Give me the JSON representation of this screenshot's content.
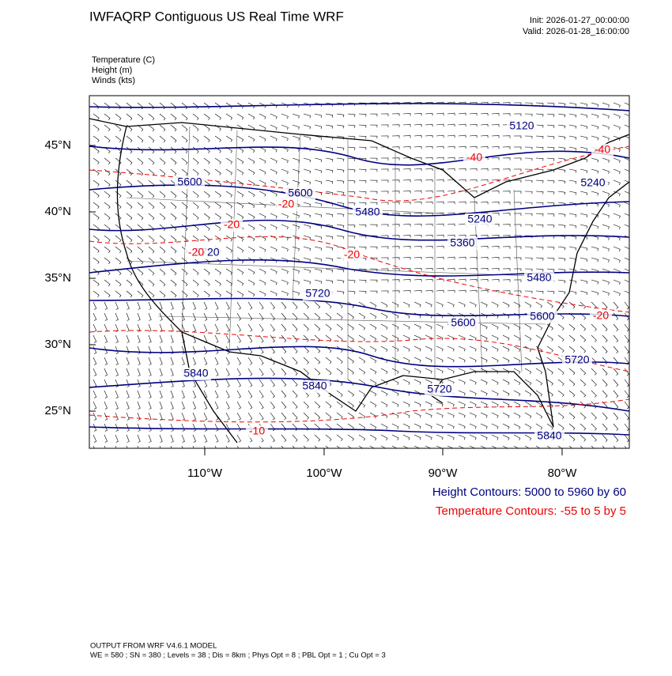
{
  "header": {
    "title": "IWFAQRP Contiguous US Real Time WRF",
    "init": "Init: 2026-01-27_00:00:00",
    "valid": "Valid: 2026-01-28_16:00:00"
  },
  "fields": [
    "Temperature   (C)",
    "Height   (m)",
    "Winds   (kts)"
  ],
  "lat_labels": [
    "45°N",
    "40°N",
    "35°N",
    "30°N",
    "25°N"
  ],
  "lon_labels": [
    "110°W",
    "100°W",
    "90°W",
    "80°W"
  ],
  "height_labels": [
    "5120",
    "5240",
    "5600",
    "5600",
    "5480",
    "5240",
    "5360",
    "5720",
    "5480",
    "5720",
    "5600",
    "5600",
    "5720",
    "5840",
    "5840",
    "5720",
    "5840"
  ],
  "temp_labels": [
    "-40",
    "-40",
    "-20",
    "-20",
    "-20",
    "-20",
    "-20",
    "-10"
  ],
  "contour_info": {
    "height": "Height Contours: 5000 to 5960 by 60",
    "temperature": "Temperature Contours: -55 to 5 by 5"
  },
  "footer": {
    "line1": "OUTPUT FROM WRF V4.6.1 MODEL",
    "line2": "WE = 580 ; SN = 380 ; Levels = 38 ; Dis = 8km ; Phys Opt = 8 ; PBL Opt = 1 ; Cu Opt = 3"
  }
}
